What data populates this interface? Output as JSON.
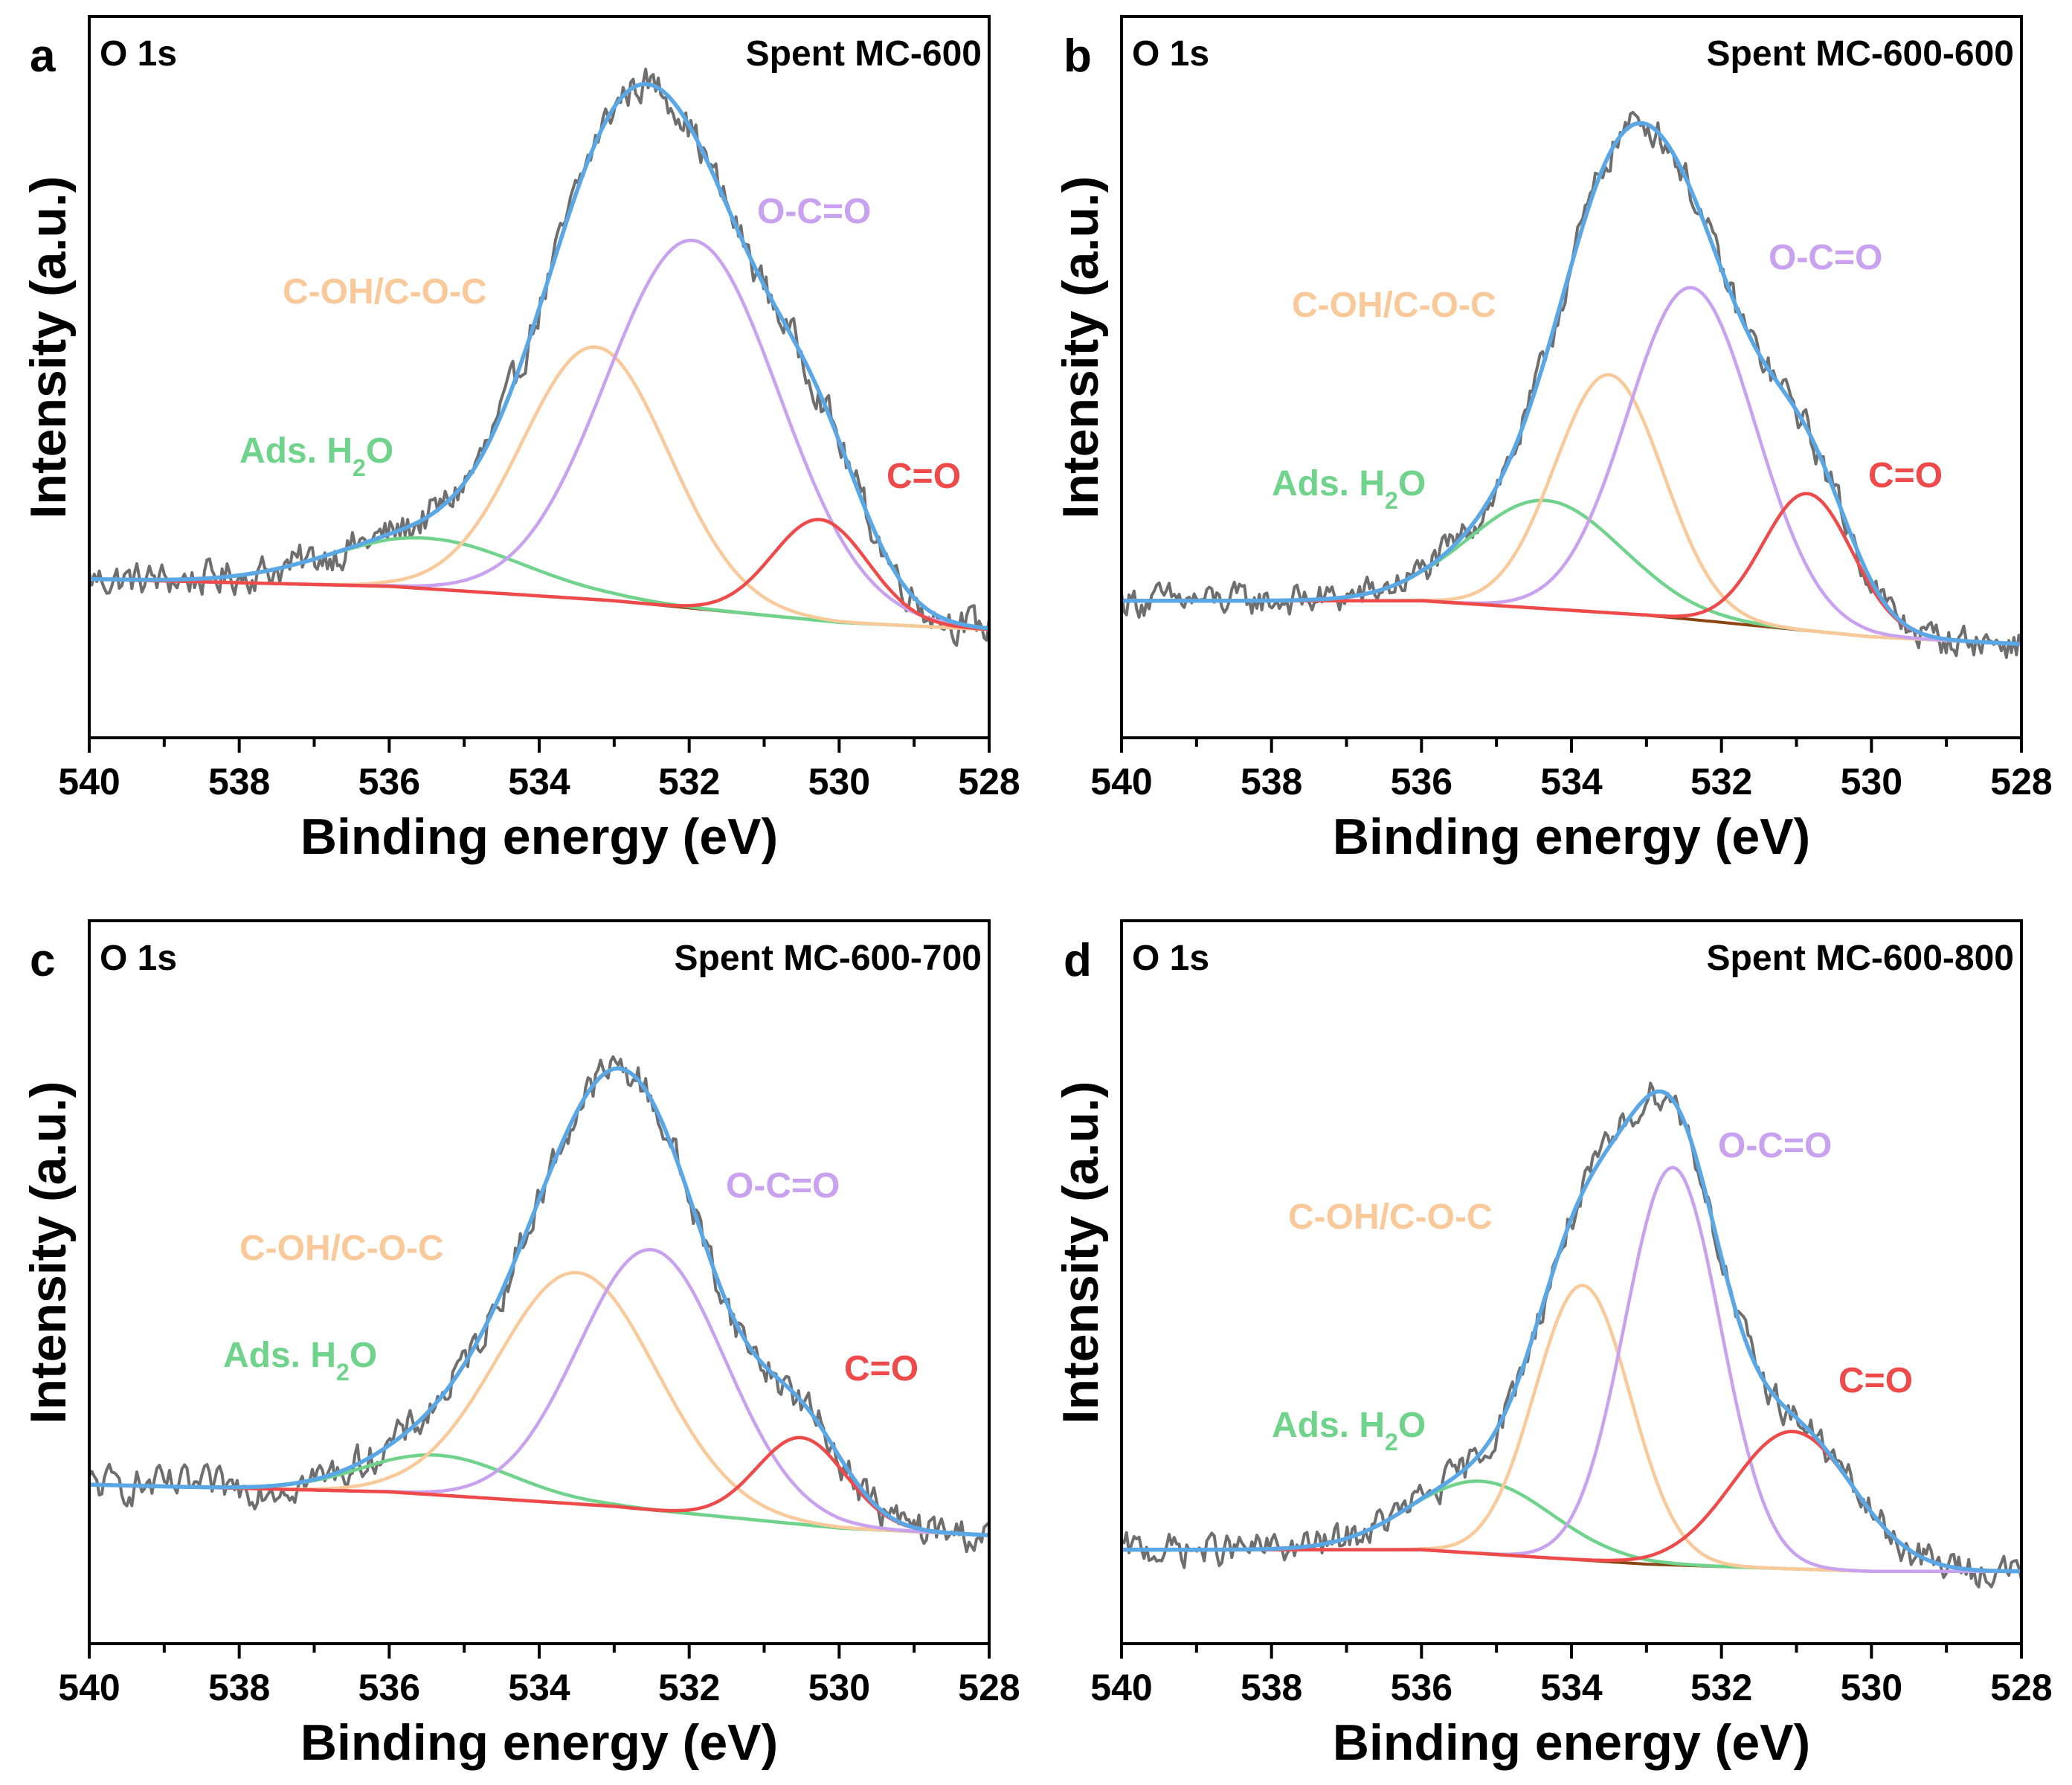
{
  "colors": {
    "raw": "#6e6e6e",
    "fit": "#5aa7e6",
    "background": "#8b4513",
    "ads_h2o": "#6fd38b",
    "c_oh": "#f9c99a",
    "o_c_o": "#c9a2ef",
    "c_o": "#ef4a4a"
  },
  "chart_data": [
    {
      "type": "line",
      "panel": "a",
      "element": "O 1s",
      "title": "Spent MC-600",
      "xlabel": "Binding energy (eV)",
      "ylabel": "Intensity (a.u.)",
      "xlim": [
        540,
        528
      ],
      "ylim": [
        0,
        1
      ],
      "xticks": [
        "540",
        "538",
        "536",
        "534",
        "532",
        "530",
        "528"
      ],
      "grid": false,
      "background_line": {
        "x": [
          540,
          536,
          533,
          530,
          528
        ],
        "y": [
          0.22,
          0.21,
          0.19,
          0.16,
          0.15
        ]
      },
      "series": [
        {
          "name": "Ads. H2O",
          "color_key": "ads_h2o",
          "center": 535.5,
          "height": 0.07,
          "fwhm": 3.0
        },
        {
          "name": "C-OH/C-O-C",
          "color_key": "c_oh",
          "center": 533.25,
          "height": 0.35,
          "fwhm": 2.3
        },
        {
          "name": "O-C=O",
          "color_key": "o_c_o",
          "center": 531.95,
          "height": 0.51,
          "fwhm": 2.7
        },
        {
          "name": "C=O",
          "color_key": "c_o",
          "center": 530.25,
          "height": 0.14,
          "fwhm": 1.5
        }
      ],
      "annotations": [
        {
          "id": "ads",
          "text": "Ads. H2O",
          "sub_text": "2",
          "color_key": "ads_h2o"
        },
        {
          "id": "coh",
          "text": "C-OH/C-O-C",
          "color_key": "c_oh"
        },
        {
          "id": "oco",
          "text": "O-C=O",
          "color_key": "o_c_o"
        },
        {
          "id": "co",
          "text": "C=O",
          "color_key": "c_o"
        }
      ],
      "noise": 0.024
    },
    {
      "type": "line",
      "panel": "b",
      "element": "O 1s",
      "title": "Spent MC-600-600",
      "xlabel": "Binding energy (eV)",
      "ylabel": "Intensity (a.u.)",
      "xlim": [
        540,
        528
      ],
      "ylim": [
        0,
        1
      ],
      "xticks": [
        "540",
        "538",
        "536",
        "534",
        "532",
        "530",
        "528"
      ],
      "grid": false,
      "background_line": {
        "x": [
          540,
          536,
          533,
          530,
          528
        ],
        "y": [
          0.19,
          0.19,
          0.17,
          0.14,
          0.13
        ]
      },
      "series": [
        {
          "name": "Ads. H2O",
          "color_key": "ads_h2o",
          "center": 534.35,
          "height": 0.15,
          "fwhm": 2.4
        },
        {
          "name": "C-OH/C-O-C",
          "color_key": "c_oh",
          "center": 533.5,
          "height": 0.33,
          "fwhm": 1.7
        },
        {
          "name": "O-C=O",
          "color_key": "o_c_o",
          "center": 532.4,
          "height": 0.46,
          "fwhm": 2.0
        },
        {
          "name": "C=O",
          "color_key": "c_o",
          "center": 530.85,
          "height": 0.19,
          "fwhm": 1.4
        }
      ],
      "annotations": [
        {
          "id": "ads",
          "text": "Ads. H2O",
          "sub_text": "2",
          "color_key": "ads_h2o"
        },
        {
          "id": "coh",
          "text": "C-OH/C-O-C",
          "color_key": "c_oh"
        },
        {
          "id": "oco",
          "text": "O-C=O",
          "color_key": "o_c_o"
        },
        {
          "id": "co",
          "text": "C=O",
          "color_key": "c_o"
        }
      ],
      "noise": 0.022
    },
    {
      "type": "line",
      "panel": "c",
      "element": "O 1s",
      "title": "Spent MC-600-700",
      "xlabel": "Binding energy (eV)",
      "ylabel": "Intensity (a.u.)",
      "xlim": [
        540,
        528
      ],
      "ylim": [
        0,
        1
      ],
      "xticks": [
        "540",
        "538",
        "536",
        "534",
        "532",
        "530",
        "528"
      ],
      "grid": false,
      "background_line": {
        "x": [
          540,
          536,
          533,
          530,
          528
        ],
        "y": [
          0.22,
          0.21,
          0.19,
          0.16,
          0.15
        ]
      },
      "series": [
        {
          "name": "Ads. H2O",
          "color_key": "ads_h2o",
          "center": 535.35,
          "height": 0.055,
          "fwhm": 2.3
        },
        {
          "name": "C-OH/C-O-C",
          "color_key": "c_oh",
          "center": 533.5,
          "height": 0.32,
          "fwhm": 2.5
        },
        {
          "name": "O-C=O",
          "color_key": "o_c_o",
          "center": 532.5,
          "height": 0.36,
          "fwhm": 2.3
        },
        {
          "name": "C=O",
          "color_key": "c_o",
          "center": 530.5,
          "height": 0.12,
          "fwhm": 1.4
        }
      ],
      "annotations": [
        {
          "id": "ads",
          "text": "Ads. H2O",
          "sub_text": "2",
          "color_key": "ads_h2o"
        },
        {
          "id": "coh",
          "text": "C-OH/C-O-C",
          "color_key": "c_oh"
        },
        {
          "id": "oco",
          "text": "O-C=O",
          "color_key": "o_c_o"
        },
        {
          "id": "co",
          "text": "C=O",
          "color_key": "c_o"
        }
      ],
      "noise": 0.024
    },
    {
      "type": "line",
      "panel": "d",
      "element": "O 1s",
      "title": "Spent MC-600-800",
      "xlabel": "Binding energy (eV)",
      "ylabel": "Intensity (a.u.)",
      "xlim": [
        540,
        528
      ],
      "ylim": [
        0,
        1
      ],
      "xticks": [
        "540",
        "538",
        "536",
        "534",
        "532",
        "530",
        "528"
      ],
      "grid": false,
      "background_line": {
        "x": [
          540,
          536,
          533,
          530,
          528
        ],
        "y": [
          0.13,
          0.13,
          0.11,
          0.1,
          0.1
        ]
      },
      "series": [
        {
          "name": "Ads. H2O",
          "color_key": "ads_h2o",
          "center": 535.2,
          "height": 0.1,
          "fwhm": 2.2
        },
        {
          "name": "C-OH/C-O-C",
          "color_key": "c_oh",
          "center": 533.85,
          "height": 0.38,
          "fwhm": 1.5
        },
        {
          "name": "O-C=O",
          "color_key": "o_c_o",
          "center": 532.65,
          "height": 0.55,
          "fwhm": 1.5
        },
        {
          "name": "C=O",
          "color_key": "c_o",
          "center": 531.05,
          "height": 0.19,
          "fwhm": 1.9
        }
      ],
      "annotations": [
        {
          "id": "ads",
          "text": "Ads. H2O",
          "sub_text": "2",
          "color_key": "ads_h2o"
        },
        {
          "id": "coh",
          "text": "C-OH/C-O-C",
          "color_key": "c_oh"
        },
        {
          "id": "oco",
          "text": "O-C=O",
          "color_key": "o_c_o"
        },
        {
          "id": "co",
          "text": "C=O",
          "color_key": "c_o"
        }
      ],
      "noise": 0.022
    }
  ]
}
